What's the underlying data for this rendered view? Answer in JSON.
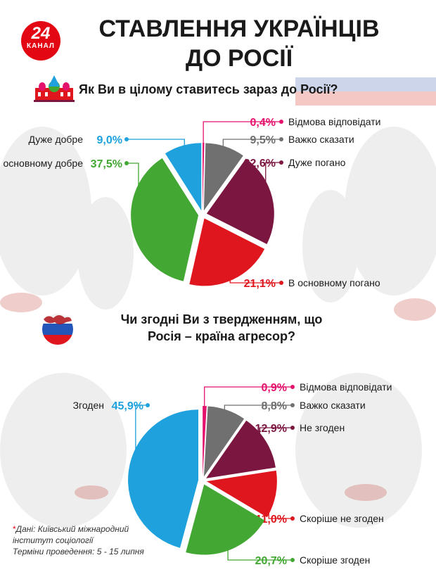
{
  "header": {
    "logo_number": "24",
    "logo_word": "КАНАЛ",
    "title_line1": "СТАВЛЕННЯ УКРАЇНЦІВ",
    "title_line2": "ДО РОСІЇ"
  },
  "colors": {
    "light_blue": "#1ea1dc",
    "green": "#43a833",
    "red": "#e0161e",
    "maroon": "#7b1640",
    "gray": "#707070",
    "pink": "#e4126d"
  },
  "chart_data": [
    {
      "type": "pie",
      "title": "Як Ви в цілому ставитесь зараз до Росії?",
      "slices": [
        {
          "label": "Відмова відповідати",
          "value": 0.4,
          "display": "0,4%",
          "color": "#e4126d"
        },
        {
          "label": "Важко сказати",
          "value": 9.5,
          "display": "9,5%",
          "color": "#707070"
        },
        {
          "label": "Дуже погано",
          "value": 22.6,
          "display": "22,6%",
          "color": "#7b1640"
        },
        {
          "label": "В основному погано",
          "value": 21.1,
          "display": "21,1%",
          "color": "#e0161e"
        },
        {
          "label": "В основному добре",
          "value": 37.5,
          "display": "37,5%",
          "color": "#43a833"
        },
        {
          "label": "Дуже добре",
          "value": 9.0,
          "display": "9,0%",
          "color": "#1ea1dc"
        }
      ]
    },
    {
      "type": "pie",
      "title": "Чи згодні Ви з твердженням, що Росія – країна агресор?",
      "slices": [
        {
          "label": "Відмова відповідати",
          "value": 0.9,
          "display": "0,9%",
          "color": "#e4126d"
        },
        {
          "label": "Важко сказати",
          "value": 8.8,
          "display": "8,8%",
          "color": "#707070"
        },
        {
          "label": "Не згоден",
          "value": 12.9,
          "display": "12,9%",
          "color": "#7b1640"
        },
        {
          "label": "Скоріше не згоден",
          "value": 11.0,
          "display": "11,0%",
          "color": "#e0161e"
        },
        {
          "label": "Скоріше згоден",
          "value": 20.7,
          "display": "20,7%",
          "color": "#43a833"
        },
        {
          "label": "Згоден",
          "value": 45.9,
          "display": "45,9%",
          "color": "#1ea1dc"
        }
      ]
    }
  ],
  "questions": {
    "q1": "Як Ви в цілому ставитесь зараз до Росії?",
    "q2_line1": "Чи згодні Ви з твердженням, що",
    "q2_line2": "Росія – країна агресор?"
  },
  "source": {
    "star": "*",
    "line1": "Дані:  Київський міжнародний",
    "line2": "інститут соціології",
    "line3": "Терміни проведення: 5 - 15 липня"
  }
}
